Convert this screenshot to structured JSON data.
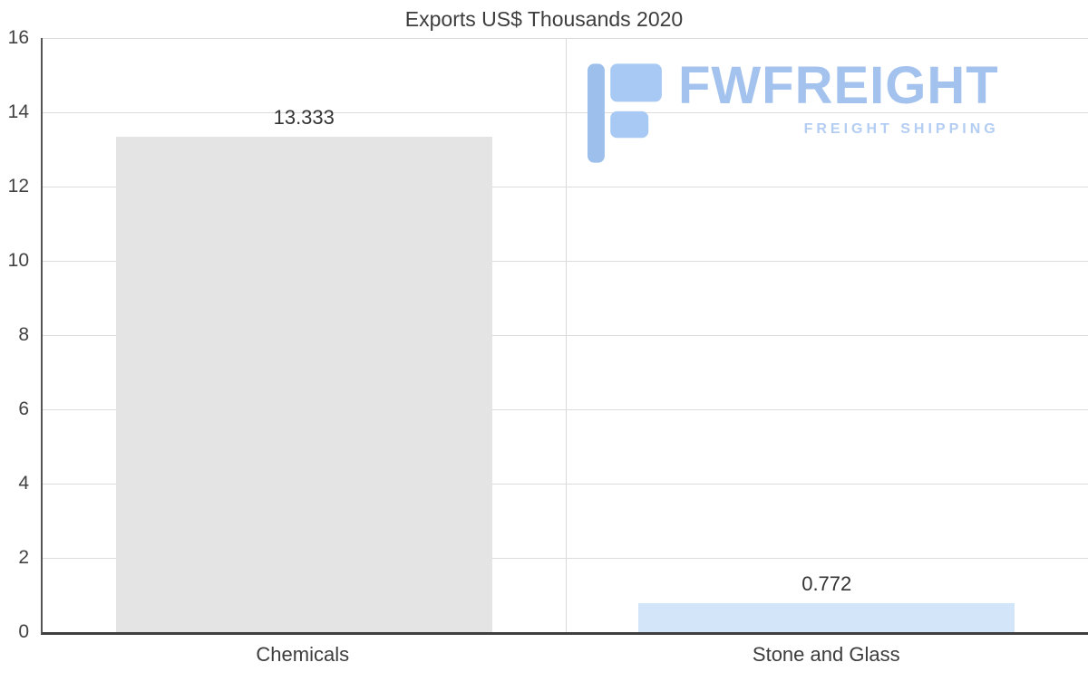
{
  "title": "Exports US$ Thousands 2020",
  "watermark": {
    "brand": "FWFREIGHT",
    "tagline": "FREIGHT SHIPPING",
    "brand_color": "#a4c2ee",
    "icon_color": "#9dbfec"
  },
  "chart_data": {
    "type": "bar",
    "title": "Exports US$ Thousands 2020",
    "categories": [
      "Chemicals",
      "Stone and Glass"
    ],
    "values": [
      13.333,
      0.772
    ],
    "value_labels": [
      "13.333",
      "0.772"
    ],
    "bar_colors": [
      "#e4e4e4",
      "#d3e5f8"
    ],
    "xlabel": "",
    "ylabel": "",
    "ylim": [
      0,
      16
    ],
    "y_ticks": [
      16,
      14,
      12,
      10,
      8,
      6,
      4,
      2,
      0
    ],
    "grid": true,
    "legend": "none"
  }
}
